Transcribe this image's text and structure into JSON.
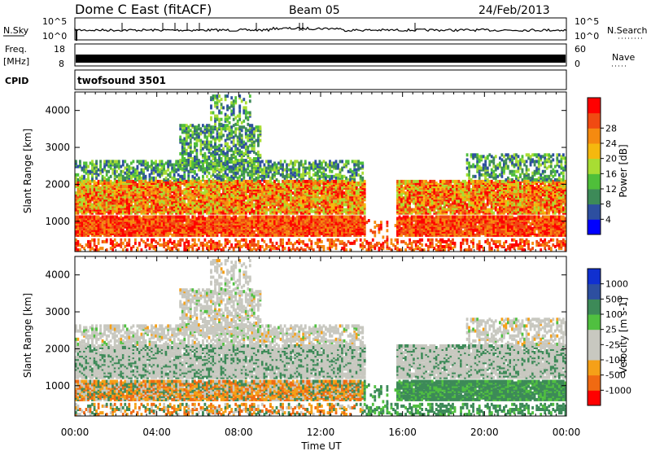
{
  "header": {
    "radar": "Dome C East (fitACF)",
    "beam": "Beam 05",
    "date": "24/Feb/2013"
  },
  "labels": {
    "nsky": "N.Sky",
    "freq_line1": "Freq.",
    "freq_line2": "[MHz]",
    "cpid": "CPID",
    "nsearch": "N.Search",
    "nave": "Nave",
    "cpid_value": "twofsound 3501"
  },
  "noise_axis": {
    "ticks": [
      "10^5",
      "10^0"
    ]
  },
  "freq_axis": {
    "left_ticks": [
      "18",
      "8"
    ],
    "right_ticks": [
      "60",
      "0"
    ]
  },
  "colors": {
    "power_scale": [
      "#0000ff",
      "#2d4fa0",
      "#3d8a58",
      "#4fbf3a",
      "#a8dd33",
      "#f5b80e",
      "#f58a10",
      "#f04a12",
      "#ff0000"
    ],
    "velocity_scale": [
      "#ff0000",
      "#f06a12",
      "#f5a018",
      "#c8c8c0",
      "#c8c8c0",
      "#50c040",
      "#3d8a58",
      "#2d4fa0",
      "#1030d0"
    ]
  },
  "chart_data": [
    {
      "type": "heatmap",
      "name": "power",
      "x_range": [
        0,
        24
      ],
      "xticks": [
        "00:00",
        "04:00",
        "08:00",
        "12:00",
        "16:00",
        "20:00",
        "00:00"
      ],
      "yticks": [
        1000,
        2000,
        3000,
        4000
      ],
      "ylabel": "Slant Range [km]",
      "ylim": [
        180,
        4500
      ],
      "colorbar": {
        "label": "Power [dB]",
        "ticks": [
          4,
          8,
          12,
          16,
          20,
          24,
          28
        ],
        "range": [
          0,
          32
        ]
      }
    },
    {
      "type": "heatmap",
      "name": "velocity",
      "x_range": [
        0,
        24
      ],
      "xlabel": "Time UT",
      "xticks": [
        "00:00",
        "04:00",
        "08:00",
        "12:00",
        "16:00",
        "20:00",
        "00:00"
      ],
      "yticks": [
        1000,
        2000,
        3000,
        4000
      ],
      "ylabel": "Slant Range [km]",
      "ylim": [
        180,
        4500
      ],
      "colorbar": {
        "label": "Velocity [m s-1]",
        "ticks": [
          "1000",
          "500",
          "100",
          "25",
          "-25",
          "-100",
          "-500",
          "-1000"
        ]
      }
    }
  ]
}
